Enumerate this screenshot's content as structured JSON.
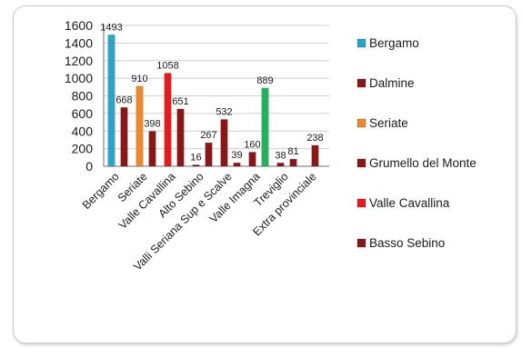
{
  "chart_data": {
    "type": "bar",
    "title": "",
    "xlabel": "",
    "ylabel": "",
    "ylim": [
      0,
      1600
    ],
    "yticks": [
      0,
      200,
      400,
      600,
      800,
      1000,
      1200,
      1400,
      1600
    ],
    "grid": true,
    "legend_position": "right",
    "categories": [
      "Bergamo",
      "Seriate",
      "Valle Cavallina",
      "Alto Sebino",
      "Valli Seriana Sup e Scalve",
      "Valle Imagna",
      "Treviglio",
      "Extra provinciale"
    ],
    "bars": [
      {
        "category": "Bergamo",
        "values": [
          1493,
          668
        ],
        "colors": [
          "#2aa4c8",
          "#8c1616"
        ]
      },
      {
        "category": "Seriate",
        "values": [
          910,
          398
        ],
        "colors": [
          "#f0882a",
          "#8c1616"
        ]
      },
      {
        "category": "Valle Cavallina",
        "values": [
          1058,
          651
        ],
        "colors": [
          "#e8191c",
          "#8c1616"
        ]
      },
      {
        "category": "Alto Sebino",
        "values": [
          16,
          267
        ],
        "colors": [
          "#8c1616",
          "#8c1616"
        ]
      },
      {
        "category": "Valli Seriana Sup e Scalve",
        "values": [
          532,
          39
        ],
        "colors": [
          "#8c1616",
          "#8c1616"
        ]
      },
      {
        "category": "Valle Imagna",
        "values": [
          160,
          889
        ],
        "colors": [
          "#8c1616",
          "#1db45b"
        ]
      },
      {
        "category": "Treviglio",
        "values": [
          38,
          81
        ],
        "colors": [
          "#8c1616",
          "#8c1616"
        ]
      },
      {
        "category": "Extra provinciale",
        "values": [
          238
        ],
        "colors": [
          "#8c1616"
        ]
      }
    ],
    "legend": [
      {
        "label": "Bergamo",
        "color": "#2aa4c8"
      },
      {
        "label": "Dalmine",
        "color": "#8c1616"
      },
      {
        "label": "Seriate",
        "color": "#f0882a"
      },
      {
        "label": "Grumello del Monte",
        "color": "#8c1616"
      },
      {
        "label": "Valle Cavallina",
        "color": "#e8191c"
      },
      {
        "label": "Basso Sebino",
        "color": "#8c1616"
      }
    ]
  }
}
